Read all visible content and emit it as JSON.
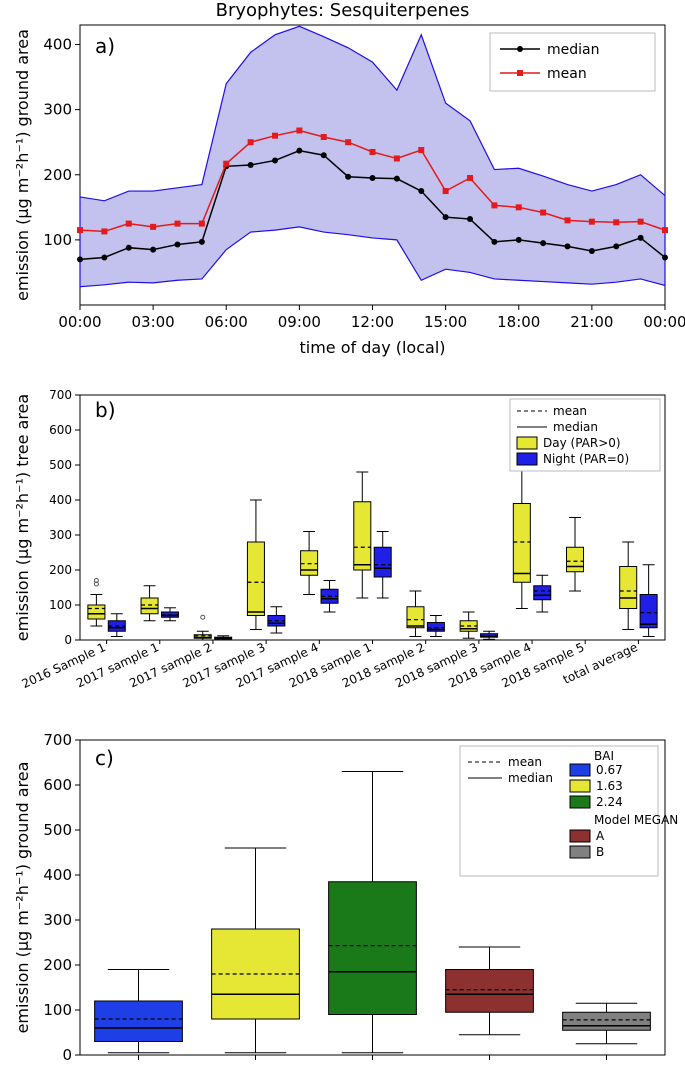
{
  "figure_title": "Bryophytes: Sesquiterpenes",
  "colors": {
    "median_line": "#000000",
    "mean_line": "#e41a1c",
    "band_fill": "#a9a7e6",
    "band_edge": "#1f0ee6",
    "day_box": "#e6e635",
    "night_box": "#1f1fe6",
    "bai_067": "#1f3fe6",
    "bai_163": "#e6e635",
    "bai_224": "#1a7a1a",
    "model_A": "#8c3030",
    "model_B": "#808080",
    "axis": "#000000",
    "grid": "#ffffff",
    "bg": "#ffffff"
  },
  "panel_a": {
    "label": "a)",
    "xlabel": "time of day (local)",
    "ylabel": "emission (µg m⁻²h⁻¹) ground area",
    "xticks": [
      "00:00",
      "03:00",
      "06:00",
      "09:00",
      "12:00",
      "15:00",
      "18:00",
      "21:00",
      "00:00"
    ],
    "xlim": [
      0,
      24
    ],
    "ylim": [
      0,
      430
    ],
    "yticks": [
      100,
      200,
      300,
      400
    ],
    "hours": [
      0,
      1,
      2,
      3,
      4,
      5,
      6,
      7,
      8,
      9,
      10,
      11,
      12,
      13,
      14,
      15,
      16,
      17,
      18,
      19,
      20,
      21,
      22,
      23,
      24
    ],
    "median": [
      70,
      73,
      88,
      85,
      93,
      97,
      213,
      215,
      222,
      237,
      230,
      197,
      195,
      194,
      175,
      135,
      132,
      97,
      100,
      95,
      90,
      83,
      90,
      103,
      73
    ],
    "mean": [
      115,
      113,
      125,
      120,
      125,
      125,
      217,
      250,
      260,
      268,
      258,
      250,
      235,
      225,
      238,
      175,
      195,
      153,
      150,
      142,
      130,
      128,
      127,
      128,
      115
    ],
    "band_lo": [
      28,
      31,
      35,
      34,
      38,
      40,
      85,
      112,
      115,
      120,
      112,
      108,
      103,
      100,
      38,
      55,
      50,
      40,
      38,
      36,
      34,
      32,
      35,
      40,
      30
    ],
    "band_hi": [
      166,
      160,
      175,
      175,
      180,
      185,
      340,
      388,
      415,
      428,
      412,
      395,
      373,
      330,
      415,
      310,
      283,
      208,
      210,
      198,
      185,
      175,
      185,
      200,
      168
    ],
    "legend": {
      "median": "median",
      "mean": "mean"
    }
  },
  "panel_b": {
    "label": "b)",
    "ylabel": "emission (µg m⁻²h⁻¹) tree area",
    "ylim": [
      0,
      700
    ],
    "yticks": [
      0,
      100,
      200,
      300,
      400,
      500,
      600,
      700
    ],
    "categories": [
      "2016 Sample 1",
      "2017 sample 1",
      "2017 sample 2",
      "2017 sample 3",
      "2017 sample 4",
      "2018 sample 1",
      "2018 sample 2",
      "2018 sample 3",
      "2018 sample 4",
      "2018 sample 5",
      "total average"
    ],
    "legend": {
      "mean": "mean",
      "median": "median",
      "day": "Day (PAR>0)",
      "night": "Night (PAR=0)"
    },
    "day": [
      {
        "q1": 60,
        "med": 75,
        "mean": 90,
        "q3": 100,
        "lo": 40,
        "hi": 130,
        "out": [
          160,
          170
        ]
      },
      {
        "q1": 75,
        "med": 90,
        "mean": 100,
        "q3": 120,
        "lo": 55,
        "hi": 155,
        "out": []
      },
      {
        "q1": 5,
        "med": 7,
        "mean": 12,
        "q3": 15,
        "lo": 0,
        "hi": 25,
        "out": [
          65
        ]
      },
      {
        "q1": 70,
        "med": 80,
        "mean": 165,
        "q3": 280,
        "lo": 30,
        "hi": 400,
        "out": []
      },
      {
        "q1": 185,
        "med": 200,
        "mean": 218,
        "q3": 255,
        "lo": 130,
        "hi": 310,
        "out": []
      },
      {
        "q1": 200,
        "med": 215,
        "mean": 265,
        "q3": 395,
        "lo": 120,
        "hi": 480,
        "out": []
      },
      {
        "q1": 35,
        "med": 40,
        "mean": 58,
        "q3": 95,
        "lo": 10,
        "hi": 140,
        "out": []
      },
      {
        "q1": 25,
        "med": 32,
        "mean": 40,
        "q3": 55,
        "lo": 5,
        "hi": 80,
        "out": []
      },
      {
        "q1": 165,
        "med": 190,
        "mean": 280,
        "q3": 390,
        "lo": 90,
        "hi": 680,
        "out": []
      },
      {
        "q1": 195,
        "med": 210,
        "mean": 225,
        "q3": 265,
        "lo": 140,
        "hi": 350,
        "out": []
      },
      {
        "q1": 90,
        "med": 120,
        "mean": 140,
        "q3": 210,
        "lo": 30,
        "hi": 280,
        "out": []
      }
    ],
    "night": [
      {
        "q1": 25,
        "med": 35,
        "mean": 40,
        "q3": 55,
        "lo": 10,
        "hi": 75,
        "out": []
      },
      {
        "q1": 65,
        "med": 70,
        "mean": 72,
        "q3": 80,
        "lo": 55,
        "hi": 92,
        "out": []
      },
      {
        "q1": 3,
        "med": 5,
        "mean": 6,
        "q3": 8,
        "lo": 0,
        "hi": 12,
        "out": []
      },
      {
        "q1": 40,
        "med": 48,
        "mean": 55,
        "q3": 70,
        "lo": 20,
        "hi": 95,
        "out": []
      },
      {
        "q1": 105,
        "med": 118,
        "mean": 125,
        "q3": 145,
        "lo": 80,
        "hi": 170,
        "out": []
      },
      {
        "q1": 180,
        "med": 205,
        "mean": 215,
        "q3": 265,
        "lo": 120,
        "hi": 310,
        "out": []
      },
      {
        "q1": 25,
        "med": 30,
        "mean": 35,
        "q3": 50,
        "lo": 10,
        "hi": 70,
        "out": []
      },
      {
        "q1": 8,
        "med": 10,
        "mean": 12,
        "q3": 18,
        "lo": 2,
        "hi": 25,
        "out": []
      },
      {
        "q1": 115,
        "med": 128,
        "mean": 140,
        "q3": 155,
        "lo": 80,
        "hi": 185,
        "out": []
      },
      {
        "q1": 0,
        "med": 0,
        "mean": 0,
        "q3": 0,
        "lo": 0,
        "hi": 0,
        "out": []
      },
      {
        "q1": 35,
        "med": 45,
        "mean": 78,
        "q3": 130,
        "lo": 10,
        "hi": 215,
        "out": []
      }
    ]
  },
  "panel_c": {
    "label": "c)",
    "ylabel": "emission (µg m⁻²h⁻¹) ground area",
    "ylim": [
      0,
      700
    ],
    "yticks": [
      0,
      100,
      200,
      300,
      400,
      500,
      600,
      700
    ],
    "legend": {
      "mean": "mean",
      "median": "median",
      "bai": "BAI",
      "b067": "0.67",
      "b163": "1.63",
      "b224": "2.24",
      "model": "Model MEGAN",
      "mA": "A",
      "mB": "B"
    },
    "boxes": [
      {
        "color": "bai_067",
        "q1": 30,
        "med": 60,
        "mean": 80,
        "q3": 120,
        "lo": 5,
        "hi": 190
      },
      {
        "color": "bai_163",
        "q1": 80,
        "med": 135,
        "mean": 180,
        "q3": 280,
        "lo": 5,
        "hi": 460
      },
      {
        "color": "bai_224",
        "q1": 90,
        "med": 185,
        "mean": 243,
        "q3": 385,
        "lo": 5,
        "hi": 630
      },
      {
        "color": "model_A",
        "q1": 95,
        "med": 135,
        "mean": 145,
        "q3": 190,
        "lo": 45,
        "hi": 240
      },
      {
        "color": "model_B",
        "q1": 55,
        "med": 65,
        "mean": 78,
        "q3": 95,
        "lo": 25,
        "hi": 115
      }
    ]
  }
}
